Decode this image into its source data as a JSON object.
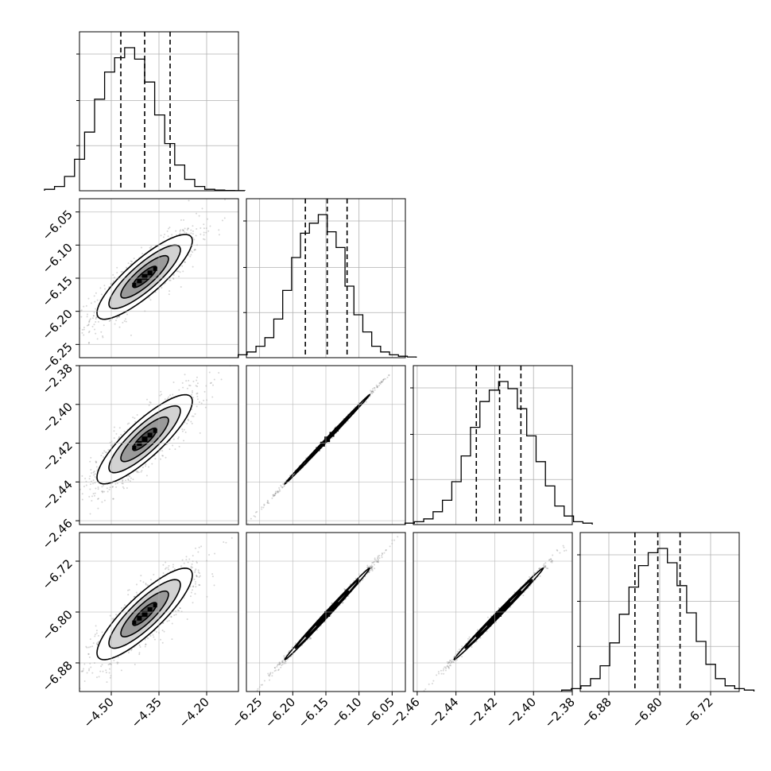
{
  "chart_data": {
    "type": "corner",
    "grid": true,
    "parameters": [
      {
        "range": [
          -4.6,
          -4.1
        ],
        "ticks": [
          -4.5,
          -4.35,
          -4.2
        ],
        "tick_labels": [
          "−4.50",
          "−4.35",
          "−4.20"
        ],
        "quantiles": [
          -4.47,
          -4.395,
          -4.315
        ],
        "mean": -4.395,
        "sd": 0.075,
        "histogram": [
          1,
          3,
          10,
          22,
          41,
          64,
          83,
          93,
          100,
          92,
          76,
          53,
          33,
          18,
          8,
          3,
          1,
          0.5,
          0.2,
          0.1
        ]
      },
      {
        "range": [
          -6.27,
          -6.03
        ],
        "ticks": [
          -6.25,
          -6.2,
          -6.15,
          -6.1,
          -6.05
        ],
        "tick_labels": [
          "−6.25",
          "−6.20",
          "−6.15",
          "−6.10",
          "−6.05"
        ],
        "quantiles": [
          -6.181,
          -6.148,
          -6.118
        ],
        "mean": -6.148,
        "sd": 0.032,
        "histogram": [
          2,
          4,
          8,
          14,
          27,
          47,
          70,
          87,
          94,
          100,
          88,
          77,
          50,
          30,
          18,
          8,
          4,
          2,
          1,
          0.5
        ]
      },
      {
        "range": [
          -2.462,
          -2.38
        ],
        "ticks": [
          -2.46,
          -2.44,
          -2.42,
          -2.4,
          -2.38
        ],
        "tick_labels": [
          "−2.46",
          "−2.44",
          "−2.42",
          "−2.40",
          "−2.38"
        ],
        "quantiles": [
          -2.4295,
          -2.4175,
          -2.4065
        ],
        "mean": -2.418,
        "sd": 0.0115,
        "histogram": [
          1,
          2,
          4,
          9,
          17,
          30,
          48,
          68,
          86,
          94,
          100,
          95,
          81,
          62,
          44,
          27,
          13,
          6,
          2,
          1
        ]
      },
      {
        "range": [
          -6.925,
          -6.675
        ],
        "ticks": [
          -6.88,
          -6.8,
          -6.72
        ],
        "tick_labels": [
          "−6.88",
          "−6.80",
          "−6.72"
        ],
        "quantiles": [
          -6.839,
          -6.803,
          -6.768
        ],
        "mean": -6.803,
        "sd": 0.036,
        "histogram": [
          1,
          2,
          4,
          9,
          18,
          34,
          54,
          73,
          88,
          97,
          100,
          90,
          74,
          55,
          35,
          19,
          9,
          4,
          2,
          1
        ]
      }
    ],
    "pairs": [
      {
        "x": 0,
        "y": 1,
        "correlation": 0.85
      },
      {
        "x": 0,
        "y": 2,
        "correlation": 0.85
      },
      {
        "x": 1,
        "y": 2,
        "correlation": 0.999
      },
      {
        "x": 0,
        "y": 3,
        "correlation": 0.85
      },
      {
        "x": 1,
        "y": 3,
        "correlation": 0.997
      },
      {
        "x": 2,
        "y": 3,
        "correlation": 0.997
      }
    ],
    "contour_levels_sigma": [
      0.5,
      1.0,
      1.5,
      2.0
    ]
  }
}
